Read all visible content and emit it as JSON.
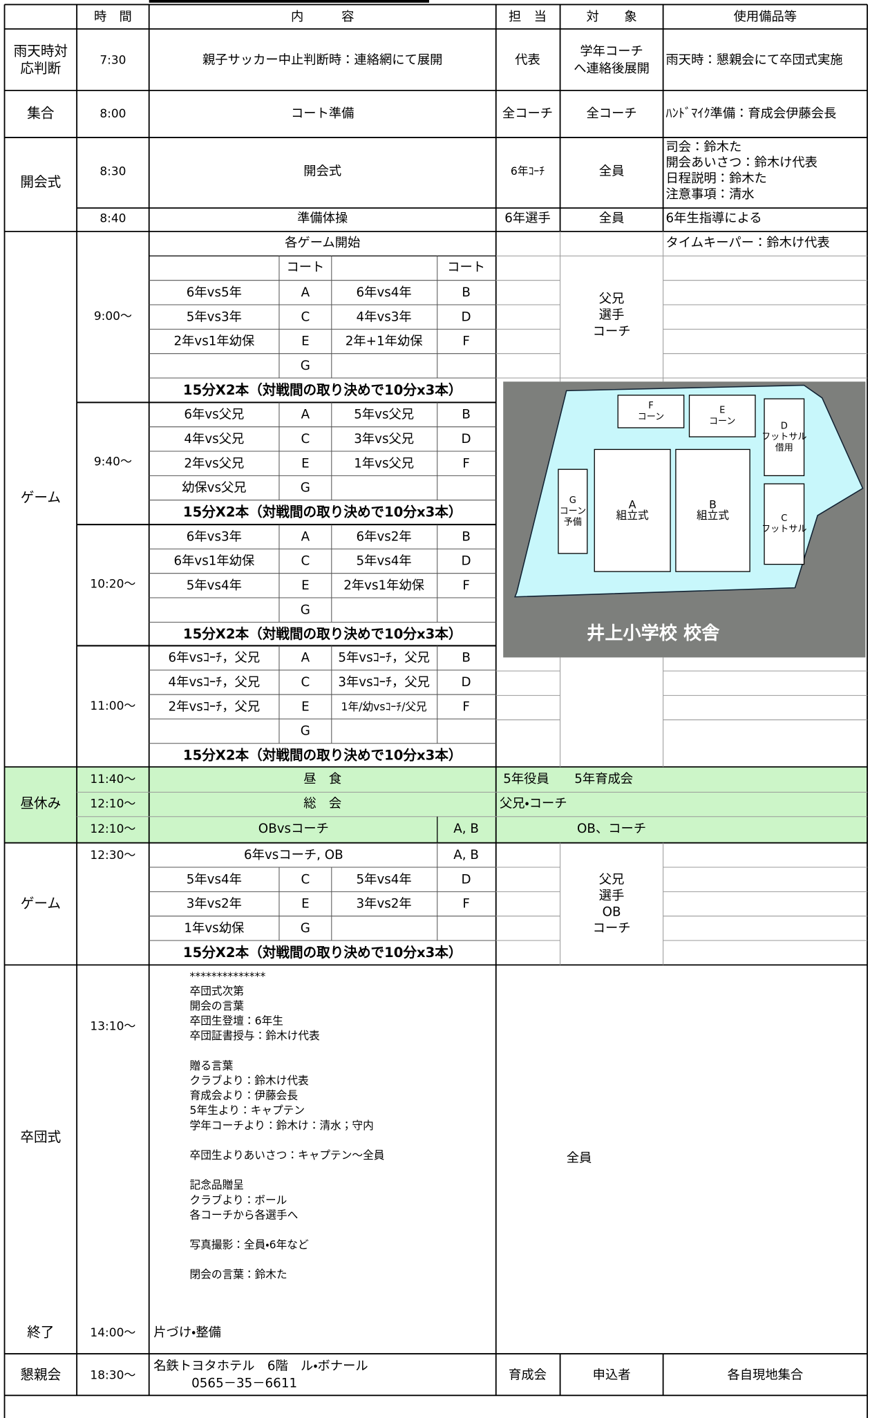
{
  "header": {
    "columns": [
      "時　間",
      "内　　　容",
      "担　当",
      "対　　象",
      "使用備品等"
    ]
  },
  "rows": [
    {
      "section": [
        "雨天時対",
        "応判断"
      ],
      "time": "7:30",
      "content": "親子サッカー中止判断時：連絡網にて展開",
      "staff": "代表",
      "target": [
        "学年コーチ",
        "へ連絡後展開"
      ],
      "equipment": [
        "雨天時：懇親会にて卒団式実施"
      ]
    },
    {
      "section": [
        "集合"
      ],
      "time": "8:00",
      "content": "コート準備",
      "staff": "全コーチ",
      "target": [
        "全コーチ"
      ],
      "equipment": [
        "ﾊﾝﾄﾞﾏｲｸ準備：育成会伊藤会長"
      ]
    },
    {
      "section": [
        "開会式"
      ],
      "time": "8:30",
      "content": "開会式",
      "staff": "6年ｺｰﾁ",
      "target": [
        "全員"
      ],
      "equipment": [
        "司会：鈴木た",
        "開会あいさつ：鈴木け代表",
        "日程説明：鈴木た",
        "注意事項：清水"
      ]
    },
    {
      "time": "8:40",
      "content": "準備体操",
      "staff": "6年選手",
      "target": [
        "全員"
      ],
      "equipment": [
        "6年生指導による"
      ]
    }
  ],
  "games": {
    "section": "ゲーム",
    "heading": "各ゲーム開始",
    "court_label": "コート",
    "timekeeper": "タイムキーパー：鈴木け代表",
    "target": [
      "父兄",
      "選手",
      "コーチ"
    ],
    "rule": "15分X2本（対戦間の取り決めで10分x3本）",
    "rounds": [
      {
        "time": "9:00～",
        "matches": [
          [
            "6年vs5年",
            "A",
            "6年vs4年",
            "B"
          ],
          [
            "5年vs3年",
            "C",
            "4年vs3年",
            "D"
          ],
          [
            "2年vs1年幼保",
            "E",
            "2年+1年幼保",
            "F"
          ],
          [
            null,
            "G",
            null,
            null
          ]
        ]
      },
      {
        "time": "9:40～",
        "matches": [
          [
            "6年vs父兄",
            "A",
            "5年vs父兄",
            "B"
          ],
          [
            "4年vs父兄",
            "C",
            "3年vs父兄",
            "D"
          ],
          [
            "2年vs父兄",
            "E",
            "1年vs父兄",
            "F"
          ],
          [
            "幼保vs父兄",
            "G",
            null,
            null
          ]
        ]
      },
      {
        "time": "10:20～",
        "matches": [
          [
            "6年vs3年",
            "A",
            "6年vs2年",
            "B"
          ],
          [
            "6年vs1年幼保",
            "C",
            "5年vs4年",
            "D"
          ],
          [
            "5年vs4年",
            "E",
            "2年vs1年幼保",
            "F"
          ],
          [
            null,
            "G",
            null,
            null
          ]
        ]
      },
      {
        "time": "11:00～",
        "matches": [
          [
            "6年vsｺｰﾁ，父兄",
            "A",
            "5年vsｺｰﾁ，父兄",
            "B"
          ],
          [
            "4年vsｺｰﾁ，父兄",
            "C",
            "3年vsｺｰﾁ，父兄",
            "D"
          ],
          [
            "2年vsｺｰﾁ，父兄",
            "E",
            "1年/幼vsｺｰﾁ/父兄",
            "F"
          ],
          [
            null,
            "G",
            null,
            null
          ]
        ]
      }
    ]
  },
  "map": {
    "courts": [
      {
        "lines": [
          "F",
          "コーン"
        ]
      },
      {
        "lines": [
          "E",
          "コーン"
        ]
      },
      {
        "lines": [
          "D",
          "フットサル",
          "借用"
        ]
      },
      {
        "lines": [
          "G",
          "コーン",
          "予備"
        ]
      },
      {
        "lines": [
          "A",
          "組立式"
        ]
      },
      {
        "lines": [
          "B",
          "組立式"
        ]
      },
      {
        "lines": [
          "C",
          "フットサル"
        ]
      }
    ],
    "school": "井上小学校 校舎"
  },
  "lunch": {
    "section": "昼休み",
    "rows": [
      {
        "time": "11:40～",
        "content": "昼　食",
        "staff": "5年役員　　5年育成会"
      },
      {
        "time": "12:10～",
        "content": "総　会",
        "staff": "父兄・コーチ"
      },
      {
        "time": "12:10～",
        "content": "OBvsコーチ",
        "court": "A, B",
        "staff": "OB、コーチ"
      }
    ]
  },
  "games2": {
    "section": "ゲーム",
    "time": "12:30～",
    "first": [
      "6年vsコーチ, OB",
      "A, B"
    ],
    "matches": [
      [
        "5年vs4年",
        "C",
        "5年vs4年",
        "D"
      ],
      [
        "3年vs2年",
        "E",
        "3年vs2年",
        "F"
      ],
      [
        "1年vs幼保",
        "G",
        null,
        null
      ]
    ],
    "target": [
      "父兄",
      "選手",
      "OB",
      "コーチ"
    ]
  },
  "ceremony": {
    "section": "卒団式",
    "time": "13:10～",
    "program": [
      [
        "**************",
        "卒団式次第",
        "開会の言葉",
        "卒団生登壇：6年生",
        "卒団証書授与：鈴木け代表"
      ],
      [
        "贈る言葉",
        "クラブより：鈴木け代表",
        "育成会より：伊藤会長",
        "5年生より：キャプテン",
        "学年コーチより：鈴木け：清水；守内"
      ],
      [
        "卒団生よりあいさつ：キャプテン～全員"
      ],
      [
        "記念品贈呈",
        "クラブより：ボール",
        "各コーチから各選手へ"
      ],
      [
        "写真撮影：全員・6年など"
      ],
      [
        "閉会の言葉：鈴木た"
      ]
    ],
    "target": "全員",
    "end": {
      "section": "終了",
      "time": "14:00～",
      "content": "片づけ・整備"
    }
  },
  "party": {
    "section": "懇親会",
    "time": "18:30～",
    "content": [
      "名鉄トヨタホテル　6階　ル・ボナール",
      "0565－35－6611"
    ],
    "staff": "育成会",
    "target": "申込者",
    "equipment": "各自現地集合"
  }
}
